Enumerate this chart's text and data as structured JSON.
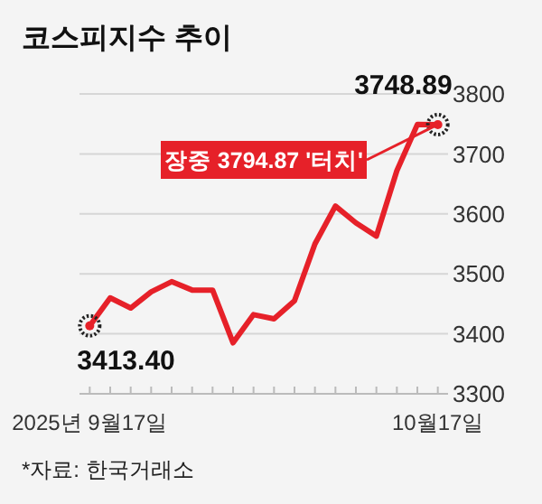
{
  "chart_data": {
    "type": "line",
    "title": "코스피지수 추이",
    "categories": [
      "2025년 9월17일",
      null,
      null,
      null,
      null,
      null,
      null,
      null,
      null,
      null,
      null,
      null,
      null,
      null,
      null,
      null,
      null,
      "10월17일"
    ],
    "series": [
      {
        "color": "#e62129",
        "values": [
          3413.4,
          3460,
          3443,
          3470,
          3487,
          3473,
          3473,
          3385,
          3432,
          3425,
          3455,
          3550,
          3613,
          3585,
          3563,
          3672,
          3749,
          3748.89
        ],
        "value_labels": [
          "3413.40",
          null,
          null,
          null,
          null,
          null,
          null,
          null,
          null,
          null,
          null,
          null,
          null,
          null,
          null,
          null,
          null,
          "3748.89"
        ]
      }
    ],
    "ylim": [
      3300,
      3800
    ],
    "yticks": [
      3300,
      3400,
      3500,
      3600,
      3700,
      3800
    ],
    "grid": "y",
    "marker": "none",
    "line_style": "solid",
    "annotations": [
      {
        "text": "장중 3794.87 '터치'",
        "x": "10월17일",
        "y": 3748.89
      },
      "*자료: 한국거래소"
    ]
  }
}
